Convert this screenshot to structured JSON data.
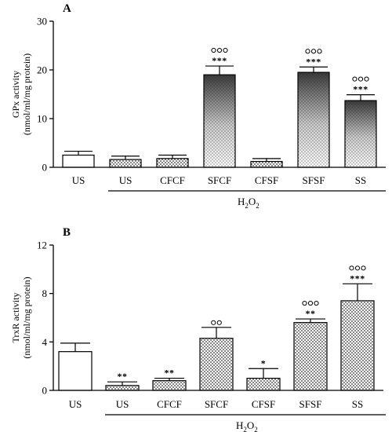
{
  "chart_data": [
    {
      "type": "bar",
      "panel": "A",
      "ylabel_lines": [
        "GPx activity",
        "(nmol/ml/mg protein)"
      ],
      "ylim": [
        0,
        30
      ],
      "yticks": [
        0,
        10,
        20,
        30
      ],
      "categories": [
        "US",
        "US",
        "CFCF",
        "SFCF",
        "CFSF",
        "SFSF",
        "SS"
      ],
      "values": [
        2.5,
        1.6,
        1.8,
        19.0,
        1.2,
        19.5,
        13.7
      ],
      "errors": [
        0.8,
        0.7,
        0.7,
        1.8,
        0.6,
        1.1,
        1.2
      ],
      "marks_top": [
        "",
        "",
        "",
        "ooo",
        "",
        "ooo",
        "ooo"
      ],
      "marks_bottom": [
        "",
        "",
        "",
        "***",
        "",
        "***",
        "***"
      ],
      "group_label": {
        "main": "H",
        "sub": "2",
        "mid": "O",
        "sub2": "2"
      },
      "pattern": [
        "none",
        "dots",
        "dots",
        "gradient",
        "dots",
        "gradient",
        "gradient"
      ]
    },
    {
      "type": "bar",
      "panel": "B",
      "ylabel_lines": [
        "TrxR activity",
        "(nmol/ml/mg protein)"
      ],
      "ylim": [
        0,
        12
      ],
      "yticks": [
        0,
        4,
        8,
        12
      ],
      "categories": [
        "US",
        "US",
        "CFCF",
        "SFCF",
        "CFSF",
        "SFSF",
        "SS"
      ],
      "values": [
        3.2,
        0.4,
        0.8,
        4.3,
        1.0,
        5.6,
        7.4
      ],
      "errors": [
        0.7,
        0.3,
        0.2,
        0.9,
        0.8,
        0.3,
        1.4
      ],
      "marks_top": [
        "",
        "",
        "",
        "oo",
        "",
        "ooo",
        "ooo"
      ],
      "marks_bottom": [
        "",
        "**",
        "**",
        "",
        "*",
        "**",
        "***"
      ],
      "group_label": {
        "main": "H",
        "sub": "2",
        "mid": "O",
        "sub2": "2"
      },
      "pattern": [
        "none",
        "dots",
        "dots",
        "dots",
        "dots",
        "dots",
        "dots"
      ]
    }
  ]
}
